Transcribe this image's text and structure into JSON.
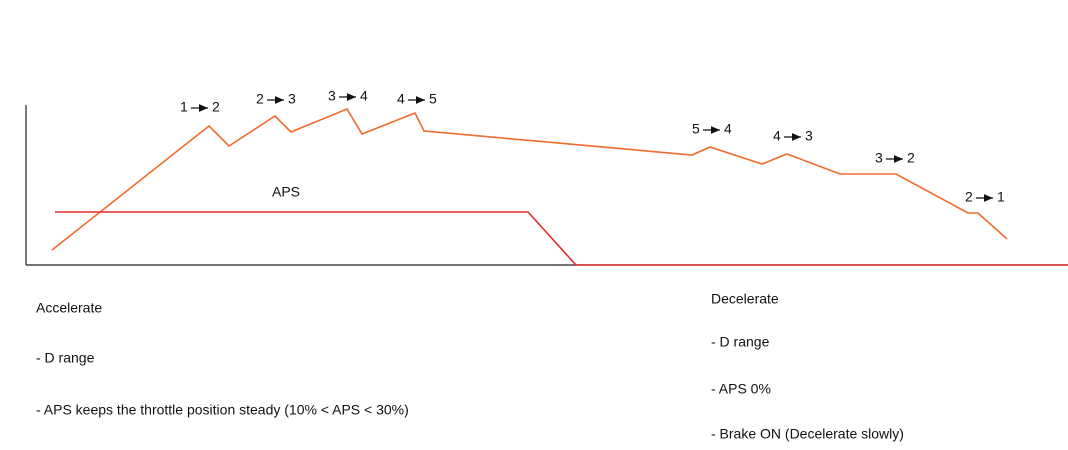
{
  "shifts": [
    {
      "from": "1",
      "to": "2"
    },
    {
      "from": "2",
      "to": "3"
    },
    {
      "from": "3",
      "to": "4"
    },
    {
      "from": "4",
      "to": "5"
    },
    {
      "from": "5",
      "to": "4"
    },
    {
      "from": "4",
      "to": "3"
    },
    {
      "from": "3",
      "to": "2"
    },
    {
      "from": "2",
      "to": "1"
    }
  ],
  "aps_label": "APS",
  "accelerate": {
    "title": "Accelerate",
    "items": [
      "- D range",
      "- APS keeps the throttle position steady (10% < APS < 30%)"
    ]
  },
  "decelerate": {
    "title": "Decelerate",
    "items": [
      "- D range",
      "- APS 0%",
      "- Brake ON (Decelerate slowly)"
    ]
  }
}
